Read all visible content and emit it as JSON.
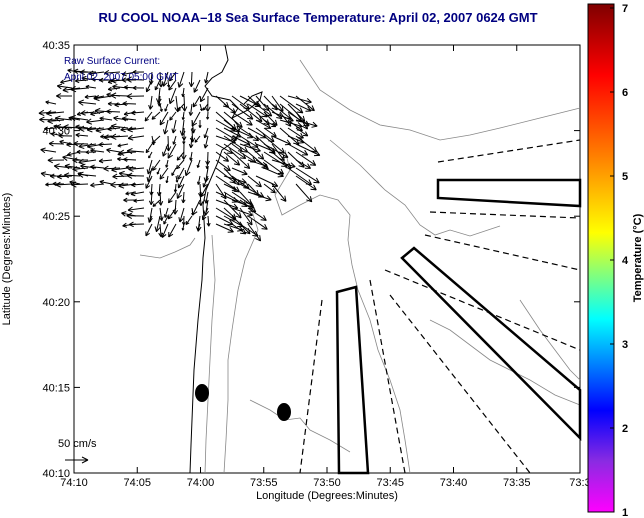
{
  "title": "RU COOL  NOAA–18  Sea Surface Temperature:  April 02, 2007 0624 GMT",
  "legend": {
    "line1": "Raw Surface Current:",
    "line2": "April 02, 2007 05:00 GMT",
    "scale_label": "50 cm/s"
  },
  "axes": {
    "xlabel": "Longitude (Degrees:Minutes)",
    "ylabel": "Latitude (Degrees:Minutes)",
    "x_ticks": [
      "74:10",
      "74:05",
      "74:00",
      "73:55",
      "73:50",
      "73:45",
      "73:40",
      "73:35",
      "73:3"
    ],
    "y_ticks": [
      "40:35",
      "40:30",
      "40:25",
      "40:20",
      "40:15",
      "40:10"
    ]
  },
  "colorbar": {
    "label": "Temperature (°C)",
    "ticks": [
      "7",
      "6",
      "5",
      "4",
      "3",
      "2",
      "1"
    ],
    "colors": [
      "#7f0000",
      "#ff0000",
      "#ff8000",
      "#ffff00",
      "#00ffff",
      "#0000ff",
      "#8a2be2",
      "#ff00ff"
    ]
  },
  "chart_data": {
    "type": "map",
    "xlim": [
      -74.1667,
      -73.5167
    ],
    "ylim": [
      40.1667,
      40.5833
    ],
    "colorbar_range": [
      1,
      7
    ]
  }
}
